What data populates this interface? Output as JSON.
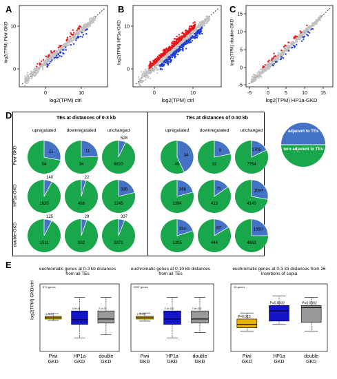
{
  "panels": {
    "A": {
      "letter": "A",
      "ylabel": "log2(TPM) Piwi-GKD",
      "xlabel": "log2(TPM) ctrl",
      "yticks": [
        "10",
        "0"
      ],
      "xticks": [
        "0",
        "10"
      ]
    },
    "B": {
      "letter": "B",
      "ylabel": "log2(TPM) HP1a-GKD",
      "xlabel": "log2(TPM) ctrl",
      "yticks": [
        "10",
        "0"
      ],
      "xticks": [
        "0",
        "10"
      ]
    },
    "C": {
      "letter": "C",
      "ylabel": "log2(TPM) double-GKD",
      "xlabel": "log2(TPM) HP1a-GKD",
      "yticks": [
        "15",
        "10",
        "5",
        "0",
        "-5"
      ],
      "xticks": [
        "-5",
        "0",
        "5",
        "10",
        "15"
      ]
    },
    "D": {
      "letter": "D",
      "group1_title": "TEs at distances of 0-3 kb",
      "group2_title": "TEs at distances of 0-10 kb",
      "col_headers": [
        "upregulated",
        "downregulated",
        "unchanged"
      ],
      "row_labels": [
        "Piwi-GKD",
        "HP1a-GKD",
        "double-GKD"
      ],
      "legend": {
        "adjacent": "adjacent to TEs",
        "nonadjacent": "non-adjacent to TEs",
        "adjacent_color": "#4472c4",
        "nonadjacent_color": "#1aa64a"
      },
      "pies": [
        [
          [
            21,
            54
          ],
          [
            11,
            34
          ],
          [
            528,
            6920
          ],
          [
            34,
            45
          ],
          [
            9,
            32
          ],
          [
            1705,
            7754
          ]
        ],
        [
          [
            140,
            1620
          ],
          [
            22,
            466
          ],
          [
            335,
            1245
          ],
          [
            366,
            1394
          ],
          [
            75,
            413
          ],
          [
            1597,
            4140
          ]
        ],
        [
          [
            125,
            1511
          ],
          [
            29,
            502
          ],
          [
            337,
            5371
          ],
          [
            332,
            1305
          ],
          [
            87,
            444
          ],
          [
            1550,
            4663
          ]
        ]
      ]
    },
    "E": {
      "letter": "E",
      "ylabel": "log2(TPM) GKD/ctrl",
      "plots": [
        {
          "title": "euchromatic genes at 0-3 kb distances from all TEs",
          "note": "674 genes",
          "labels": [
            "Piwi\nGKD",
            "HP1a\nGKD",
            "double\nGKD"
          ],
          "pvals": [
            "4.2e-07",
            "4.9e-44",
            "2.1e-07"
          ]
        },
        {
          "title": "euchromatic genes at 0-10 kb distances from all TEs",
          "note": "2097 genes",
          "labels": [
            "Piwi\nGKD",
            "HP1a\nGKD",
            "double\nGKD"
          ],
          "pvals": [
            "1.7e-16",
            "2.1e-102",
            "7.6e-102"
          ]
        },
        {
          "title": "euchromatic genes at 0-3 kb distances from 26 insertions of copia",
          "note": "15 genes",
          "labels": [
            "Piwi\nGKD",
            "HP1a\nGKD",
            "double\nGKD"
          ],
          "pvals": [
            "P=0.013",
            "P=0.0002",
            "P=0.0002"
          ]
        }
      ],
      "box_colors": [
        "#e6b400",
        "#1414c8",
        "#999999"
      ]
    }
  }
}
